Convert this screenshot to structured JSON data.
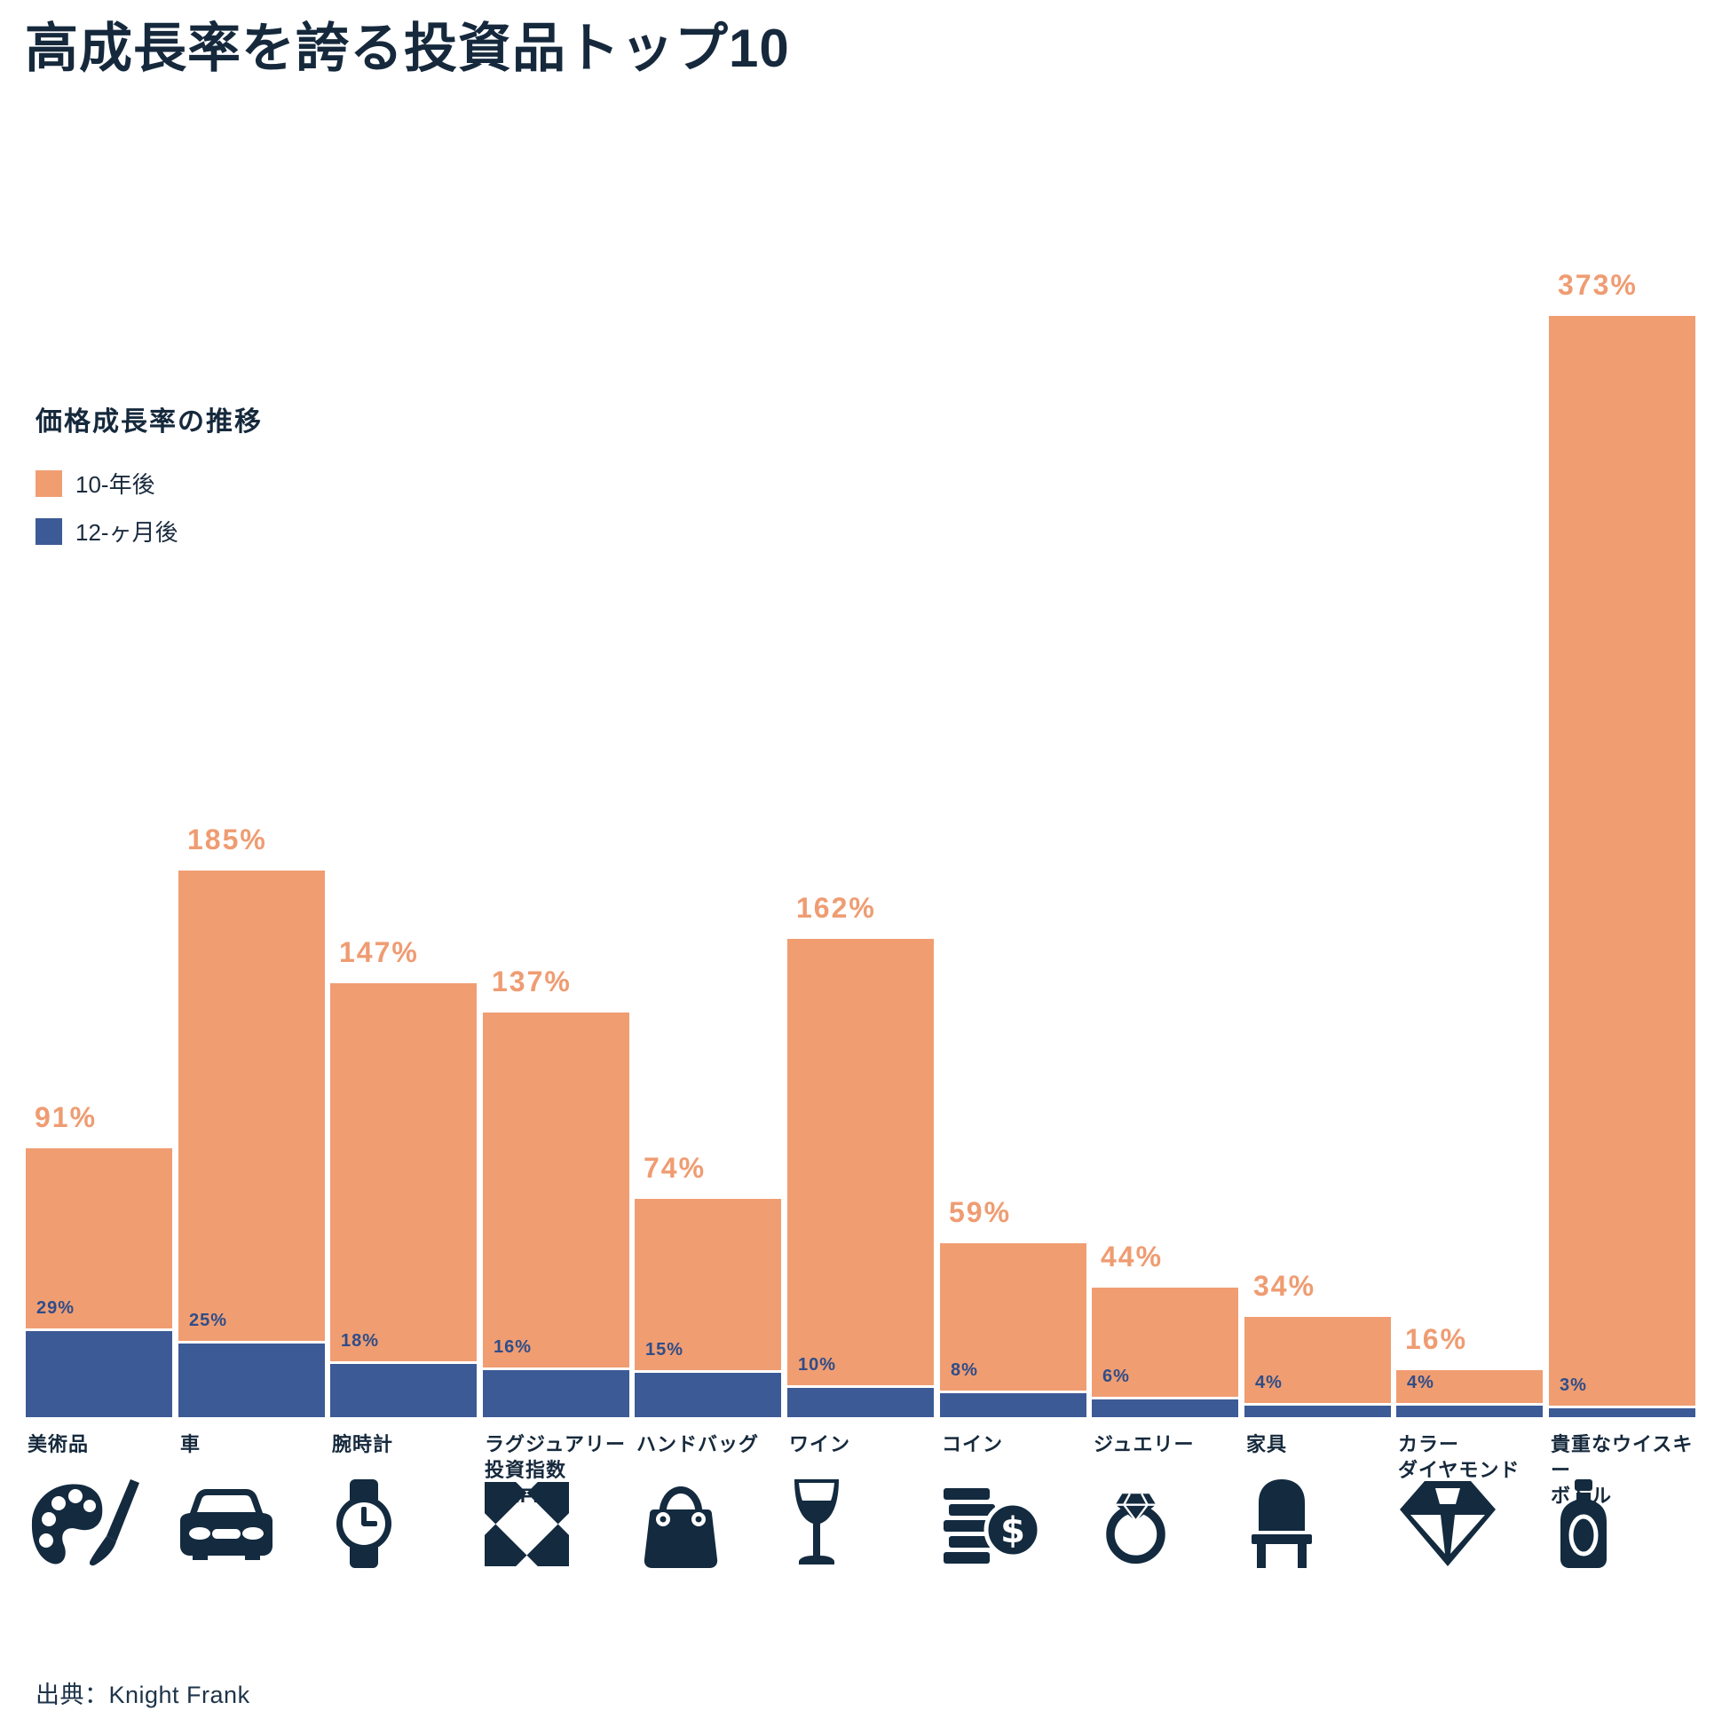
{
  "title": "高成長率を誇る投資品トップ10",
  "legend": {
    "heading": "価格成長率の推移",
    "items": [
      {
        "label": "10-年後",
        "color": "#F09D72"
      },
      {
        "label": "12-ヶ月後",
        "color": "#3C5A96"
      }
    ]
  },
  "source": "出典：Knight Frank",
  "colors": {
    "bar_10yr": "#F09D72",
    "bar_12mo": "#3C5A96",
    "value_label_10yr": "#EF9C72",
    "value_label_12mo": "#2F4D88",
    "text_dark": "#16293C",
    "icon_navy": "#132A3F",
    "background": "#FFFFFF"
  },
  "chart_data": {
    "type": "bar",
    "title": "価格成長率の推移",
    "xlabel": "",
    "ylabel": "",
    "unit": "%",
    "ylim": [
      0,
      390
    ],
    "grid": false,
    "legend_position": "upper-left",
    "value_labels": "above-bars",
    "categories": [
      "美術品",
      "車",
      "腕時計",
      "ラグジュアリー\n投資指数（KFLII）",
      "ハンドバッグ",
      "ワイン",
      "コイン",
      "ジュエリー",
      "家具",
      "カラー\nダイヤモンド",
      "貴重なウイスキー\nボトル"
    ],
    "series": [
      {
        "name": "10-年後",
        "color": "#F09D72",
        "values": [
          91,
          185,
          147,
          137,
          74,
          162,
          59,
          44,
          34,
          16,
          373
        ]
      },
      {
        "name": "12-ヶ月後",
        "color": "#3C5A96",
        "values": [
          29,
          25,
          18,
          16,
          15,
          10,
          8,
          6,
          4,
          4,
          3
        ]
      }
    ],
    "icons": [
      "palette-icon",
      "car-icon",
      "watch-icon",
      "kflii-icon",
      "handbag-icon",
      "wine-glass-icon",
      "coins-icon",
      "ring-icon",
      "chair-icon",
      "diamond-icon",
      "whisky-bottle-icon"
    ]
  }
}
